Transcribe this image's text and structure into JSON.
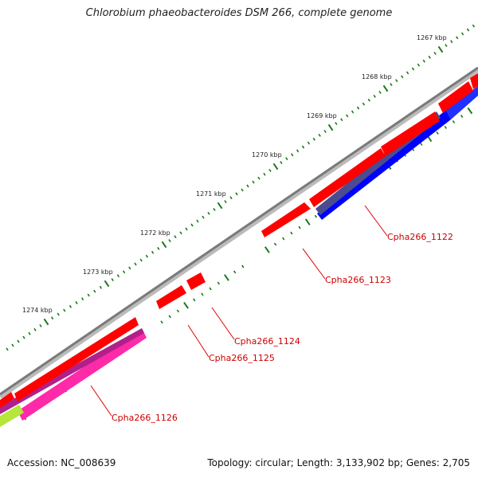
{
  "title": "Chlorobium phaeobacteroides DSM 266, complete genome",
  "footer": {
    "accession": "Accession: NC_008639",
    "summary": "Topology: circular; Length: 3,133,902 bp; Genes: 2,705"
  },
  "scale": {
    "ticks": [
      "1267 kbp",
      "1268 kbp",
      "1269 kbp",
      "1270 kbp",
      "1271 kbp",
      "1272 kbp",
      "1273 kbp",
      "1274 kbp"
    ],
    "tick_color": "#1a7a1a"
  },
  "genes": [
    {
      "label": "Cpha266_1122",
      "color": "#cc0000"
    },
    {
      "label": "Cpha266_1123",
      "color": "#cc0000"
    },
    {
      "label": "Cpha266_1124",
      "color": "#cc0000"
    },
    {
      "label": "Cpha266_1125",
      "color": "#cc0000"
    },
    {
      "label": "Cpha266_1126",
      "color": "#cc0000"
    }
  ],
  "colors": {
    "backbone": "#888888",
    "cds": "#ff0000",
    "feature_blue": "#0000ff",
    "feature_navy": "#4b4b8f",
    "feature_pink": "#ff2aa8",
    "feature_magenta": "#b0208a",
    "feature_lime": "#b5e63a",
    "gc_tick": "#1a7a1a"
  }
}
